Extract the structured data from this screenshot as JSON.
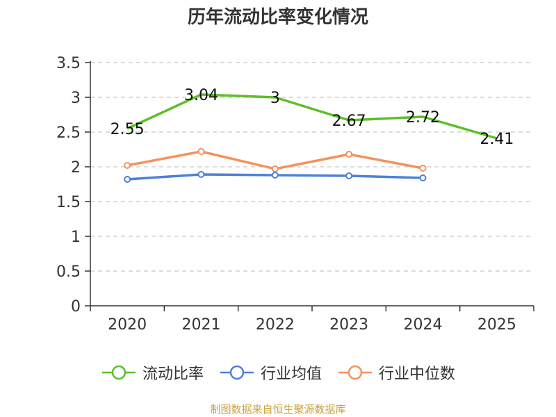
{
  "chart_data": {
    "type": "line",
    "title": "历年流动比率变化情况",
    "categories": [
      "2020",
      "2021",
      "2022",
      "2023",
      "2024",
      "2025"
    ],
    "ylim": [
      0,
      3.5
    ],
    "yticks": [
      0,
      0.5,
      1,
      1.5,
      2,
      2.5,
      3,
      3.5
    ],
    "ytick_labels": [
      "0",
      "0.5",
      "1",
      "1.5",
      "2",
      "2.5",
      "3",
      "3.5"
    ],
    "grid": true,
    "legend_position": "bottom",
    "series": [
      {
        "name": "流动比率",
        "color": "#5cbf2a",
        "values": [
          2.55,
          3.04,
          3.0,
          2.67,
          2.72,
          2.41
        ],
        "labels": [
          "2.55",
          "3.04",
          "3",
          "2.67",
          "2.72",
          "2.41"
        ],
        "show_labels": true,
        "markers": false
      },
      {
        "name": "行业均值",
        "color": "#4e7fd9",
        "values": [
          1.82,
          1.89,
          1.88,
          1.87,
          1.84,
          null
        ],
        "show_labels": false,
        "markers": true
      },
      {
        "name": "行业中位数",
        "color": "#f3925d",
        "values": [
          2.02,
          2.22,
          1.97,
          2.18,
          1.98,
          null
        ],
        "show_labels": false,
        "markers": true
      }
    ],
    "source": "制图数据来自恒生聚源数据库"
  }
}
